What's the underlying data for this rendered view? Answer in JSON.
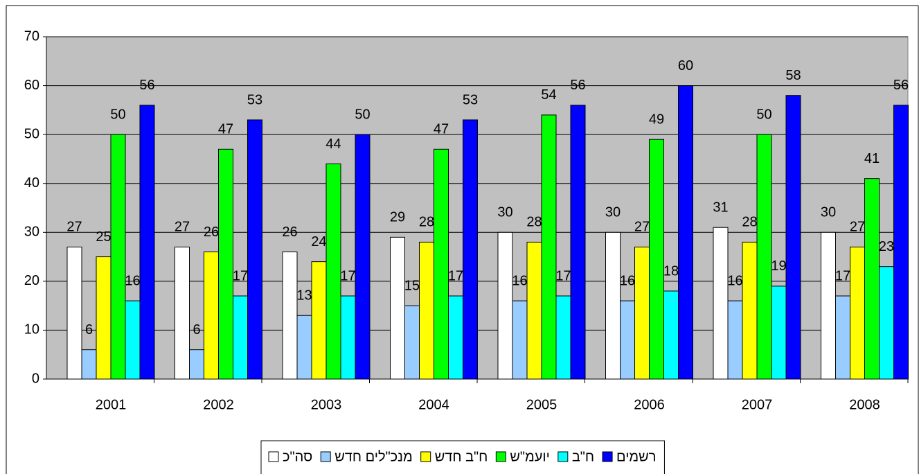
{
  "chart_data": {
    "type": "bar",
    "categories": [
      "2001",
      "2002",
      "2003",
      "2004",
      "2005",
      "2006",
      "2007",
      "2008"
    ],
    "series": [
      {
        "name": "סה\"כ",
        "color": "#ffffff",
        "values": [
          27,
          27,
          26,
          29,
          30,
          30,
          31,
          30
        ]
      },
      {
        "name": "מנכ\"לים חדש",
        "color": "#99ccff",
        "values": [
          6,
          6,
          13,
          15,
          16,
          16,
          16,
          17
        ]
      },
      {
        "name": "ח\"ב חדש",
        "color": "#ffff00",
        "values": [
          25,
          26,
          24,
          28,
          28,
          27,
          28,
          27
        ]
      },
      {
        "name": "יועמ\"ש",
        "color": "#00ff00",
        "values": [
          50,
          47,
          44,
          47,
          54,
          49,
          50,
          41
        ]
      },
      {
        "name": "ח\"ב",
        "color": "#00ffff",
        "values": [
          16,
          17,
          17,
          17,
          17,
          18,
          19,
          23
        ]
      },
      {
        "name": "רשמים",
        "color": "#0000ff",
        "values": [
          56,
          53,
          50,
          53,
          56,
          60,
          58,
          56
        ]
      }
    ],
    "ylim": [
      0,
      70
    ],
    "yticks": [
      0,
      10,
      20,
      30,
      40,
      50,
      60,
      70
    ],
    "grid": true,
    "legend": "bottom"
  }
}
